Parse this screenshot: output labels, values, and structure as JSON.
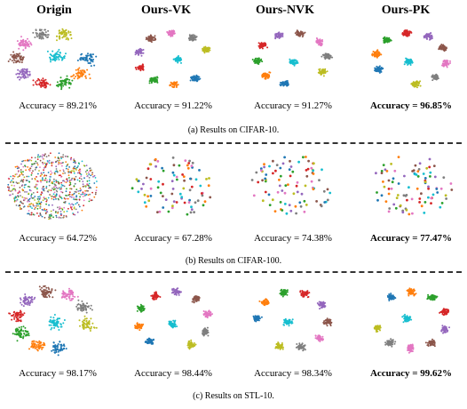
{
  "columns": [
    "Origin",
    "Ours-VK",
    "Ours-NVK",
    "Ours-PK"
  ],
  "palette": [
    "#1f77b4",
    "#ff7f0e",
    "#2ca02c",
    "#d62728",
    "#9467bd",
    "#8c564b",
    "#e377c2",
    "#7f7f7f",
    "#bcbd22",
    "#17becf"
  ],
  "rows": [
    {
      "dataset": "CIFAR-10",
      "caption": "(a) Results on CIFAR-10.",
      "accuracies": [
        "Accuracy = 89.21%",
        "Accuracy = 91.22%",
        "Accuracy = 91.27%",
        "Accuracy = 96.85%"
      ],
      "best_index": 3
    },
    {
      "dataset": "CIFAR-100",
      "caption": "(b) Results on CIFAR-100.",
      "accuracies": [
        "Accuracy = 64.72%",
        "Accuracy = 67.28%",
        "Accuracy = 74.38%",
        "Accuracy = 77.47%"
      ],
      "best_index": 3
    },
    {
      "dataset": "STL-10",
      "caption": "(c) Results on STL-10.",
      "accuracies": [
        "Accuracy = 98.17%",
        "Accuracy = 98.44%",
        "Accuracy = 98.34%",
        "Accuracy = 99.62%"
      ],
      "best_index": 3
    }
  ]
}
